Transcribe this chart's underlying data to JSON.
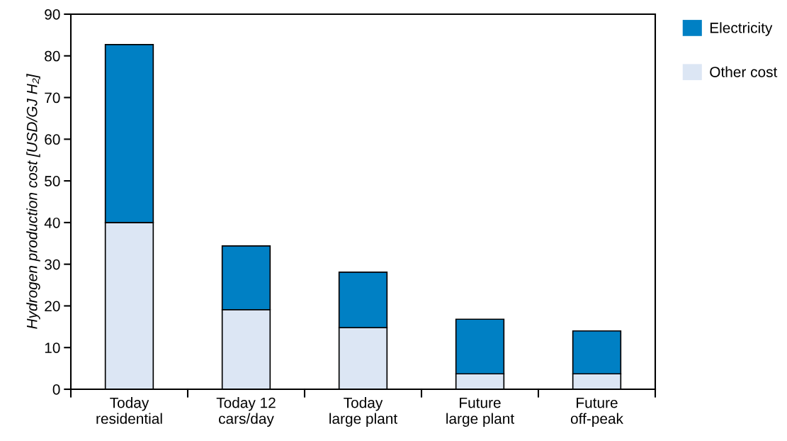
{
  "chart_data": {
    "type": "bar",
    "stacked": true,
    "ylabel": "Hydrogen production cost [USD/GJ H₂]",
    "categories": [
      "Today\nresidential",
      "Today 12\ncars/day",
      "Today\nlarge plant",
      "Future\nlarge plant",
      "Future\noff-peak"
    ],
    "series": [
      {
        "name": "Other cost",
        "color": "#dce6f4",
        "values": [
          40.0,
          19.1,
          14.8,
          3.7,
          3.7
        ]
      },
      {
        "name": "Electricity",
        "color": "#0080c4",
        "values": [
          42.7,
          15.3,
          13.3,
          13.1,
          10.3
        ]
      }
    ],
    "ylim": [
      0,
      90
    ],
    "yticks": [
      0,
      10,
      20,
      30,
      40,
      50,
      60,
      70,
      80,
      90
    ],
    "grid": false,
    "legend": "top right"
  }
}
